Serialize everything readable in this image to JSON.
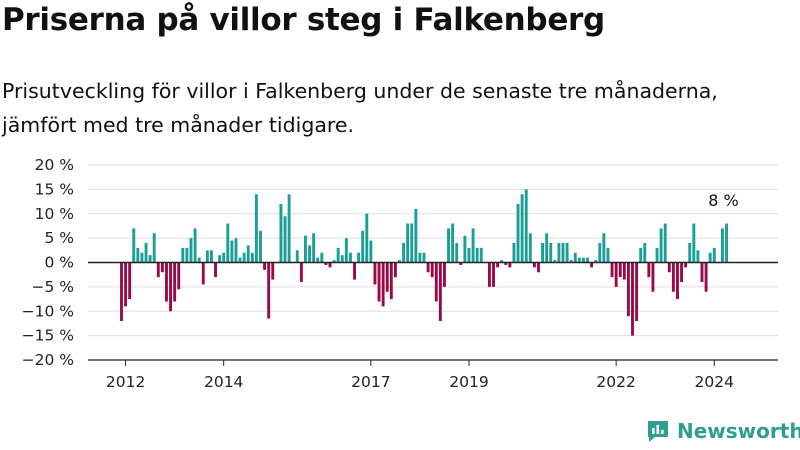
{
  "title": "Priserna på villor steg i Falkenberg",
  "subtitle": "Prisutveckling för villor i Falkenberg under de senaste tre månaderna, jämfört med tre månader tidigare.",
  "brand": "Newsworthy",
  "colors": {
    "positive": "#1a9e96",
    "negative": "#990a46",
    "grid": "#dddddd",
    "zero_line": "#222222",
    "brand": "#2f9d8f"
  },
  "chart_data": {
    "type": "bar",
    "x_start": "2011-12",
    "x_step": "month",
    "ylim": [
      -20,
      20
    ],
    "yticks": [
      20,
      15,
      10,
      5,
      0,
      -5,
      -10,
      -15,
      -20
    ],
    "y_tick_labels": [
      "20 %",
      "15 %",
      "10 %",
      "5 %",
      "0 %",
      "−5 %",
      "−10 %",
      "−15 %",
      "−20 %"
    ],
    "x_tick_labels": [
      "2012",
      "2014",
      "2017",
      "2019",
      "2022",
      "2024"
    ],
    "x_tick_positions": [
      "2012-01",
      "2014-01",
      "2017-01",
      "2019-01",
      "2022-01",
      "2024-01"
    ],
    "last_label": "8 %",
    "values": [
      -12,
      -9,
      -7.5,
      7,
      3,
      2,
      4,
      1.5,
      6,
      -3,
      -2,
      -8,
      -10,
      -8,
      -5.5,
      3,
      3,
      5,
      7,
      1,
      -4.5,
      2.5,
      2.5,
      -3,
      1.5,
      2,
      8,
      4.5,
      5,
      1,
      2,
      3.5,
      2,
      14,
      6.5,
      -1.5,
      -11.5,
      -3.5,
      0,
      12,
      9.5,
      14,
      0,
      2.5,
      -4,
      5.5,
      3.5,
      6,
      1,
      2,
      -0.5,
      -1,
      0.5,
      3,
      1.5,
      5,
      2,
      -3.5,
      2,
      6.5,
      10,
      4.5,
      -4.5,
      -8,
      -9,
      -6,
      -7.5,
      -3,
      0.5,
      4,
      8,
      8,
      11,
      2,
      2,
      -2,
      -3,
      -8,
      -12,
      -5,
      7,
      8,
      4,
      -0.5,
      5.5,
      3,
      7,
      3,
      3,
      0,
      -5,
      -5,
      -1,
      0.5,
      -0.5,
      -1,
      4,
      12,
      14,
      15,
      6,
      -1,
      -2,
      4,
      6,
      4,
      0.5,
      4,
      4,
      4,
      0.5,
      2,
      1,
      1,
      1,
      -1,
      0.5,
      4,
      6,
      3,
      -3,
      -5,
      -3,
      -3.5,
      -11,
      -15,
      -12,
      3,
      4,
      -3,
      -6,
      3,
      7,
      8,
      -2,
      -6,
      -7.5,
      -4,
      -1,
      4,
      8,
      2.5,
      -4,
      -6,
      2,
      3,
      0,
      7,
      8
    ]
  }
}
